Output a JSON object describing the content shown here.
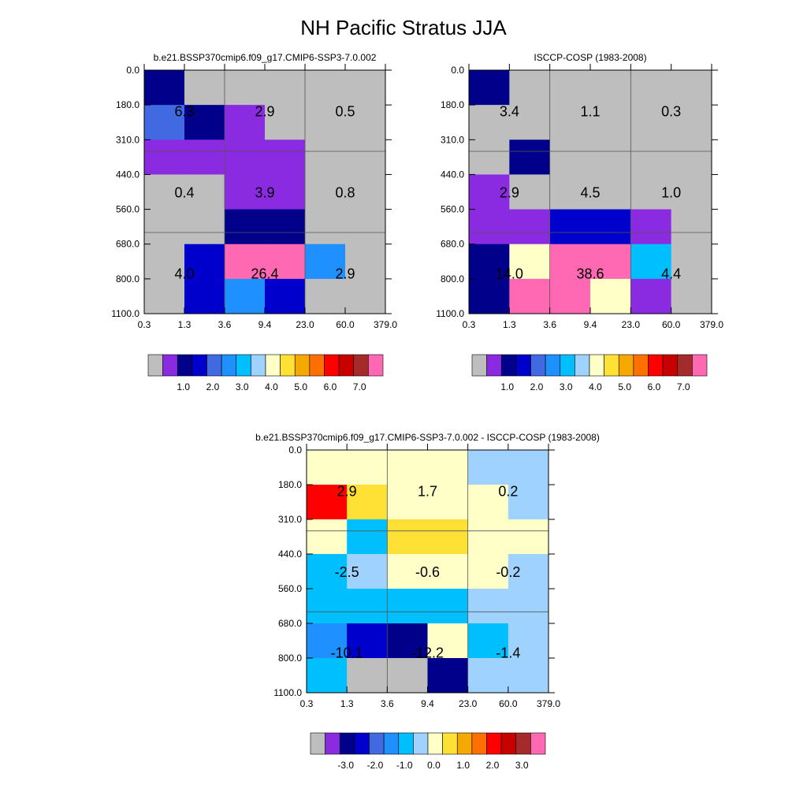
{
  "title": "NH Pacific Stratus JJA",
  "x_ticks": [
    "0.3",
    "1.3",
    "3.6",
    "9.4",
    "23.0",
    "60.0",
    "379.0"
  ],
  "y_ticks": [
    "0.0",
    "180.0",
    "310.0",
    "440.0",
    "560.0",
    "680.0",
    "800.0",
    "1100.0"
  ],
  "colors": {
    "abs": [
      "#bebebe",
      "#8a2be2",
      "#00008b",
      "#0000cd",
      "#4169e1",
      "#1e90ff",
      "#00bfff",
      "#a0d2ff",
      "#ffffc8",
      "#ffe135",
      "#f5a800",
      "#ff7000",
      "#ff0000",
      "#c80000",
      "#a52a2a",
      "#ff69b4"
    ],
    "diff": [
      "#bebebe",
      "#8a2be2",
      "#00008b",
      "#0000cd",
      "#4169e1",
      "#1e90ff",
      "#00bfff",
      "#a0d2ff",
      "#ffffc8",
      "#ffe135",
      "#f5a800",
      "#ff7000",
      "#ff0000",
      "#c80000",
      "#a52a2a",
      "#ff69b4"
    ]
  },
  "chart_data": [
    {
      "type": "heatmap",
      "title": "b.e21.BSSP370cmip6.f09_g17.CMIP6-SSP3-7.0.002",
      "colorbar_labels": [
        "1.0",
        "2.0",
        "3.0",
        "4.0",
        "5.0",
        "6.0",
        "7.0"
      ],
      "cells": [
        [
          2,
          0,
          0,
          0,
          0,
          0
        ],
        [
          4,
          2,
          1,
          0,
          0,
          0
        ],
        [
          1,
          1,
          1,
          1,
          0,
          0
        ],
        [
          0,
          0,
          1,
          1,
          0,
          0
        ],
        [
          0,
          0,
          2,
          2,
          0,
          0
        ],
        [
          0,
          3,
          15,
          15,
          5,
          0
        ],
        [
          0,
          3,
          5,
          3,
          0,
          0
        ]
      ],
      "annotations": [
        {
          "col": 0,
          "row": 0,
          "text": "6.3"
        },
        {
          "col": 1,
          "row": 0,
          "text": "2.9"
        },
        {
          "col": 2,
          "row": 0,
          "text": "0.5"
        },
        {
          "col": 0,
          "row": 1,
          "text": "0.4"
        },
        {
          "col": 1,
          "row": 1,
          "text": "3.9"
        },
        {
          "col": 2,
          "row": 1,
          "text": "0.8"
        },
        {
          "col": 0,
          "row": 2,
          "text": "4.0"
        },
        {
          "col": 1,
          "row": 2,
          "text": "26.4"
        },
        {
          "col": 2,
          "row": 2,
          "text": "2.9"
        }
      ]
    },
    {
      "type": "heatmap",
      "title": "ISCCP-COSP (1983-2008)",
      "colorbar_labels": [
        "1.0",
        "2.0",
        "3.0",
        "4.0",
        "5.0",
        "6.0",
        "7.0"
      ],
      "cells": [
        [
          2,
          0,
          0,
          0,
          0,
          0
        ],
        [
          0,
          0,
          0,
          0,
          0,
          0
        ],
        [
          0,
          2,
          0,
          0,
          0,
          0
        ],
        [
          1,
          0,
          0,
          0,
          0,
          0
        ],
        [
          1,
          1,
          3,
          3,
          1,
          0
        ],
        [
          2,
          8,
          15,
          15,
          6,
          0
        ],
        [
          2,
          15,
          15,
          8,
          1,
          0
        ]
      ],
      "annotations": [
        {
          "col": 0,
          "row": 0,
          "text": "3.4"
        },
        {
          "col": 1,
          "row": 0,
          "text": "1.1"
        },
        {
          "col": 2,
          "row": 0,
          "text": "0.3"
        },
        {
          "col": 0,
          "row": 1,
          "text": "2.9"
        },
        {
          "col": 1,
          "row": 1,
          "text": "4.5"
        },
        {
          "col": 2,
          "row": 1,
          "text": "1.0"
        },
        {
          "col": 0,
          "row": 2,
          "text": "14.0"
        },
        {
          "col": 1,
          "row": 2,
          "text": "38.6"
        },
        {
          "col": 2,
          "row": 2,
          "text": "4.4"
        }
      ]
    },
    {
      "type": "heatmap",
      "title": "b.e21.BSSP370cmip6.f09_g17.CMIP6-SSP3-7.0.002 - ISCCP-COSP (1983-2008)",
      "colorbar_labels": [
        "-3.0",
        "-2.0",
        "-1.0",
        "0.0",
        "1.0",
        "2.0",
        "3.0"
      ],
      "cells": [
        [
          8,
          8,
          8,
          8,
          7,
          7
        ],
        [
          12,
          9,
          8,
          8,
          8,
          7
        ],
        [
          8,
          6,
          9,
          9,
          8,
          8
        ],
        [
          6,
          7,
          8,
          8,
          8,
          7
        ],
        [
          6,
          6,
          6,
          6,
          7,
          7
        ],
        [
          5,
          3,
          2,
          8,
          6,
          7
        ],
        [
          6,
          0,
          0,
          2,
          7,
          7
        ]
      ],
      "annotations": [
        {
          "col": 0,
          "row": 0,
          "text": "2.9"
        },
        {
          "col": 1,
          "row": 0,
          "text": "1.7"
        },
        {
          "col": 2,
          "row": 0,
          "text": "0.2"
        },
        {
          "col": 0,
          "row": 1,
          "text": "-2.5"
        },
        {
          "col": 1,
          "row": 1,
          "text": "-0.6"
        },
        {
          "col": 2,
          "row": 1,
          "text": "-0.2"
        },
        {
          "col": 0,
          "row": 2,
          "text": "-10.1"
        },
        {
          "col": 1,
          "row": 2,
          "text": "-12.2"
        },
        {
          "col": 2,
          "row": 2,
          "text": "-1.4"
        }
      ]
    }
  ]
}
